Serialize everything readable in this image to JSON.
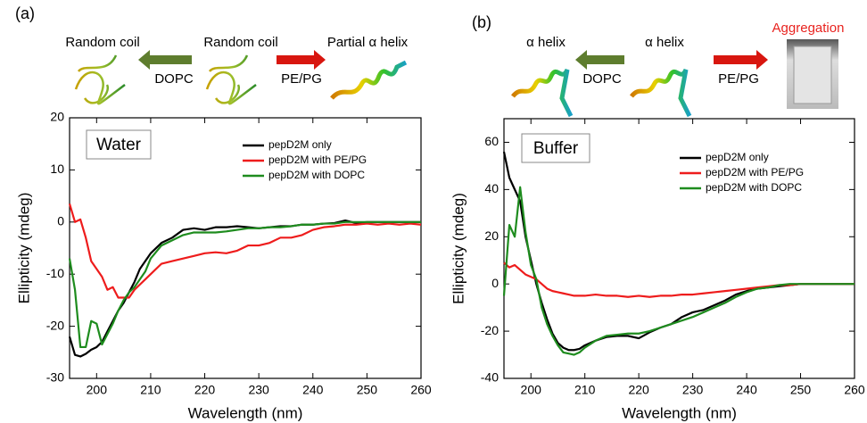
{
  "chart_data": [
    {
      "type": "line",
      "panel_label": "(a)",
      "inset_label": "Water",
      "annotations": [
        "Random coil",
        "DOPC",
        "Random coil",
        "PE/PG",
        "Partial α helix"
      ],
      "xlabel": "Wavelength (nm)",
      "ylabel": "Ellipticity (mdeg)",
      "xlim": [
        195,
        260
      ],
      "xticks": [
        200,
        210,
        220,
        230,
        240,
        250,
        260
      ],
      "ylim": [
        -30,
        20
      ],
      "yticks": [
        -30,
        -20,
        -10,
        0,
        10,
        20
      ],
      "x": [
        195,
        196,
        197,
        198,
        199,
        200,
        201,
        202,
        203,
        204,
        205,
        206,
        207,
        208,
        209,
        210,
        212,
        214,
        216,
        218,
        220,
        222,
        224,
        226,
        228,
        230,
        232,
        234,
        236,
        238,
        240,
        242,
        244,
        246,
        248,
        250,
        252,
        254,
        256,
        258,
        260
      ],
      "series": [
        {
          "name": "pepD2M only",
          "color": "#000000",
          "values": [
            -22,
            -25.5,
            -25.8,
            -25.3,
            -24.5,
            -24,
            -23,
            -21,
            -19,
            -17,
            -15.5,
            -13.5,
            -11.5,
            -9,
            -7.5,
            -6,
            -4,
            -3,
            -1.5,
            -1.2,
            -1.5,
            -1,
            -1,
            -0.8,
            -1,
            -1.2,
            -1,
            -0.8,
            -0.8,
            -0.5,
            -0.5,
            -0.3,
            -0.2,
            0.3,
            -0.2,
            0,
            0,
            0,
            0,
            0,
            0
          ]
        },
        {
          "name": "pepD2M with PE/PG",
          "color": "#ee1c1c",
          "values": [
            3.5,
            0,
            0.5,
            -3,
            -7.5,
            -9,
            -10.5,
            -13,
            -12.5,
            -14.5,
            -14.5,
            -14.5,
            -13,
            -12,
            -11,
            -10,
            -8,
            -7.5,
            -7,
            -6.5,
            -6,
            -5.8,
            -6,
            -5.5,
            -4.5,
            -4.5,
            -4,
            -3,
            -3,
            -2.5,
            -1.5,
            -1,
            -0.8,
            -0.5,
            -0.5,
            -0.3,
            -0.5,
            -0.3,
            -0.5,
            -0.3,
            -0.5
          ]
        },
        {
          "name": "pepD2M with DOPC",
          "color": "#1e8c1e",
          "values": [
            -7,
            -13,
            -24,
            -24,
            -19,
            -19.5,
            -23.5,
            -21.5,
            -19.5,
            -17,
            -15,
            -13.5,
            -12.5,
            -11,
            -9.5,
            -7,
            -4.5,
            -3.5,
            -2.5,
            -2,
            -2,
            -2,
            -1.8,
            -1.5,
            -1.2,
            -1.2,
            -1,
            -1,
            -0.8,
            -0.5,
            -0.5,
            -0.3,
            -0.3,
            0,
            0,
            0,
            0,
            0,
            0,
            0,
            0
          ]
        }
      ]
    },
    {
      "type": "line",
      "panel_label": "(b)",
      "inset_label": "Buffer",
      "annotations": [
        "α helix",
        "DOPC",
        "α helix",
        "PE/PG",
        "Aggregation"
      ],
      "xlabel": "Wavelength (nm)",
      "ylabel": "Ellipticity (mdeg)",
      "xlim": [
        195,
        260
      ],
      "xticks": [
        200,
        210,
        220,
        230,
        240,
        250,
        260
      ],
      "ylim": [
        -40,
        70
      ],
      "yticks": [
        -40,
        -20,
        0,
        20,
        40,
        60
      ],
      "x": [
        195,
        196,
        197,
        198,
        199,
        200,
        201,
        202,
        203,
        204,
        205,
        206,
        207,
        208,
        209,
        210,
        212,
        214,
        216,
        218,
        220,
        222,
        224,
        226,
        228,
        230,
        232,
        234,
        236,
        238,
        240,
        242,
        244,
        246,
        248,
        250,
        252,
        254,
        256,
        258,
        260
      ],
      "series": [
        {
          "name": "pepD2M only",
          "color": "#000000",
          "values": [
            56,
            45,
            40,
            35,
            20,
            10,
            0,
            -8,
            -15,
            -21,
            -25,
            -27,
            -28,
            -28,
            -27.5,
            -26,
            -24,
            -22.5,
            -22,
            -22,
            -23,
            -20.5,
            -18.5,
            -17,
            -14,
            -12,
            -11,
            -9,
            -7,
            -4.5,
            -3,
            -2,
            -1.5,
            -1,
            -0.5,
            0,
            0,
            0,
            0,
            0,
            0
          ]
        },
        {
          "name": "pepD2M with PE/PG",
          "color": "#ee1c1c",
          "values": [
            9,
            7,
            8,
            6,
            4,
            3,
            2,
            0,
            -2,
            -3,
            -3.5,
            -4,
            -4.5,
            -5,
            -5,
            -5,
            -4.5,
            -5,
            -5,
            -5.5,
            -5,
            -5.5,
            -5,
            -5,
            -4.5,
            -4.5,
            -4,
            -3.5,
            -3,
            -2.5,
            -2,
            -1.5,
            -1,
            -0.5,
            -0.5,
            0,
            0,
            0,
            0,
            0,
            0
          ]
        },
        {
          "name": "pepD2M with DOPC",
          "color": "#1e8c1e",
          "values": [
            -5,
            25,
            20,
            41,
            22,
            8,
            2,
            -10,
            -17,
            -22,
            -26,
            -29,
            -29.5,
            -30,
            -29,
            -27,
            -24,
            -22,
            -21.5,
            -21,
            -21,
            -20,
            -18.5,
            -17,
            -15.5,
            -14,
            -12,
            -10,
            -8,
            -5.5,
            -3.5,
            -2,
            -1.5,
            -0.5,
            0,
            0,
            0,
            0,
            0,
            0,
            0
          ]
        }
      ]
    }
  ]
}
